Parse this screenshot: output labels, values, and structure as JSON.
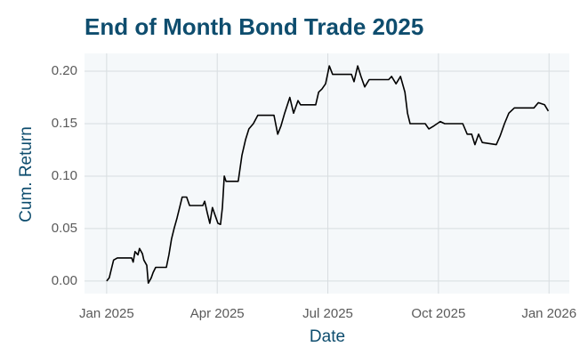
{
  "chart_data": {
    "type": "line",
    "title": "End of Month Bond Trade 2025",
    "x_label": "Date",
    "y_label": "Cum. Return",
    "x": [
      0,
      0.07,
      0.12,
      0.19,
      0.29,
      0.68,
      0.72,
      0.77,
      0.85,
      0.89,
      0.97,
      1.01,
      1.09,
      1.13,
      1.21,
      1.26,
      1.33,
      1.62,
      1.69,
      1.76,
      1.83,
      1.91,
      1.98,
      2.05,
      2.17,
      2.25,
      2.61,
      2.66,
      2.73,
      2.8,
      2.87,
      2.95,
      3.02,
      3.09,
      3.14,
      3.19,
      3.24,
      3.57,
      3.67,
      3.77,
      3.86,
      3.98,
      4.1,
      4.54,
      4.64,
      4.73,
      4.83,
      4.97,
      5.07,
      5.19,
      5.26,
      5.67,
      5.75,
      5.84,
      5.94,
      6.04,
      6.13,
      6.64,
      6.71,
      6.81,
      6.9,
      7.0,
      7.12,
      7.65,
      7.73,
      7.85,
      7.97,
      8.09,
      8.16,
      8.23,
      8.64,
      8.74,
      8.88,
      9.05,
      9.17,
      9.66,
      9.78,
      9.9,
      9.99,
      10.09,
      10.19,
      10.57,
      10.67,
      10.79,
      10.91,
      11.06,
      11.59,
      11.71,
      11.88,
      11.98
    ],
    "series": [
      {
        "color": "#000000",
        "values": [
          0,
          0.003,
          0.01,
          0.02,
          0.022,
          0.022,
          0.018,
          0.028,
          0.025,
          0.031,
          0.026,
          0.02,
          0.015,
          -0.002,
          0.003,
          0.008,
          0.013,
          0.013,
          0.025,
          0.04,
          0.05,
          0.06,
          0.07,
          0.08,
          0.08,
          0.072,
          0.072,
          0.076,
          0.065,
          0.055,
          0.07,
          0.062,
          0.055,
          0.054,
          0.07,
          0.1,
          0.095,
          0.095,
          0.12,
          0.135,
          0.145,
          0.15,
          0.158,
          0.158,
          0.14,
          0.148,
          0.16,
          0.175,
          0.16,
          0.172,
          0.168,
          0.168,
          0.18,
          0.183,
          0.188,
          0.205,
          0.197,
          0.197,
          0.19,
          0.205,
          0.195,
          0.185,
          0.192,
          0.192,
          0.195,
          0.188,
          0.195,
          0.18,
          0.16,
          0.15,
          0.15,
          0.145,
          0.148,
          0.152,
          0.15,
          0.15,
          0.14,
          0.14,
          0.13,
          0.14,
          0.132,
          0.13,
          0.138,
          0.15,
          0.16,
          0.165,
          0.165,
          0.17,
          0.168,
          0.162
        ]
      }
    ],
    "xlim": [
      -0.6,
      12.55
    ],
    "xticks": [
      {
        "value": 0,
        "label": "Jan 2025"
      },
      {
        "value": 3,
        "label": "Apr 2025"
      },
      {
        "value": 6,
        "label": "Jul 2025"
      },
      {
        "value": 9,
        "label": "Oct 2025"
      },
      {
        "value": 12,
        "label": "Jan 2026"
      }
    ],
    "ylim": [
      -0.012,
      0.217
    ],
    "yticks": [
      {
        "value": 0,
        "label": "0.00"
      },
      {
        "value": 0.05,
        "label": "0.05"
      },
      {
        "value": 0.1,
        "label": "0.10"
      },
      {
        "value": 0.15,
        "label": "0.15"
      },
      {
        "value": 0.2,
        "label": "0.20"
      }
    ],
    "grid": true,
    "panel_color": "#f5f8fa",
    "grid_color": "#d8dde0"
  }
}
